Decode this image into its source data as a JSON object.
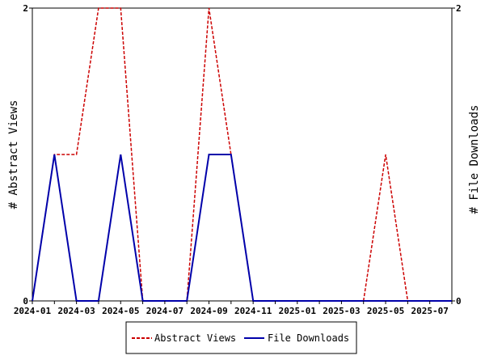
{
  "chart_data": {
    "type": "line",
    "x": [
      "2024-01",
      "2024-02",
      "2024-03",
      "2024-04",
      "2024-05",
      "2024-06",
      "2024-07",
      "2024-08",
      "2024-09",
      "2024-10",
      "2024-11",
      "2024-12",
      "2025-01",
      "2025-02",
      "2025-03",
      "2025-04",
      "2025-05",
      "2025-06",
      "2025-07",
      "2025-08"
    ],
    "x_tick_labels": [
      "2024-01",
      "2024-03",
      "2024-05",
      "2024-07",
      "2024-09",
      "2024-11",
      "2025-01",
      "2025-03",
      "2025-05",
      "2025-07"
    ],
    "series": [
      {
        "name": "Abstract Views",
        "color": "#cc0000",
        "style": "dashed",
        "axis": "left",
        "values": [
          0,
          1,
          1,
          2,
          2,
          0,
          0,
          0,
          2,
          1,
          0,
          0,
          0,
          0,
          0,
          0,
          1,
          0,
          0,
          0
        ]
      },
      {
        "name": "File Downloads",
        "color": "#0000aa",
        "style": "solid",
        "axis": "right",
        "values": [
          0,
          1,
          0,
          0,
          1,
          0,
          0,
          0,
          1,
          1,
          0,
          0,
          0,
          0,
          0,
          0,
          0,
          0,
          0,
          0
        ]
      }
    ],
    "ylabel_left": "# Abstract Views",
    "ylabel_right": "# File Downloads",
    "ylim_left": [
      0,
      2
    ],
    "ylim_right": [
      0,
      2
    ],
    "y_tick_labels_left": [
      "0",
      "2"
    ],
    "y_tick_labels_right": [
      "0",
      "2"
    ],
    "grid": false,
    "legend_position": "bottom"
  }
}
